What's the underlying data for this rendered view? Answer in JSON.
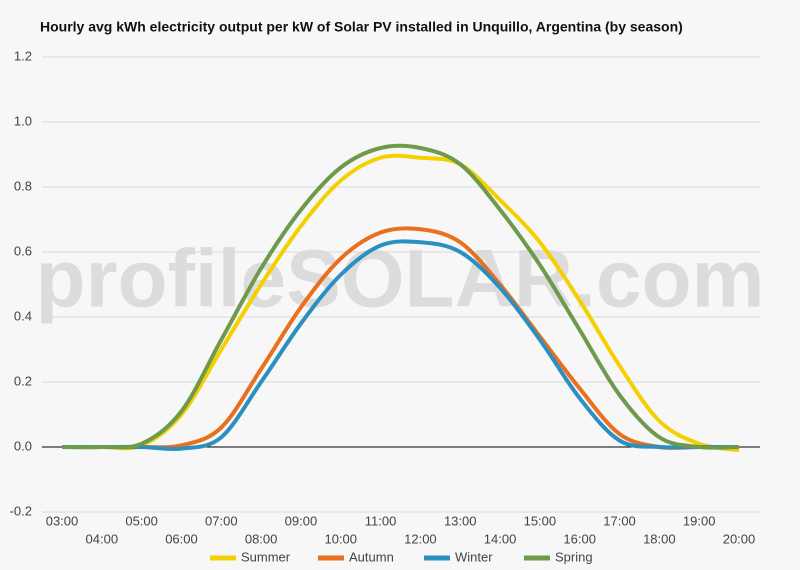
{
  "chart_data": {
    "type": "line",
    "title": "Hourly avg kWh electricity output per kW of Solar PV installed in Unquillo, Argentina (by season)",
    "watermark": "profileSOLAR.com",
    "categories": [
      "03:00",
      "04:00",
      "05:00",
      "06:00",
      "07:00",
      "08:00",
      "09:00",
      "10:00",
      "11:00",
      "12:00",
      "13:00",
      "14:00",
      "15:00",
      "16:00",
      "17:00",
      "18:00",
      "19:00",
      "20:00"
    ],
    "series": [
      {
        "name": "Summer",
        "color": "#f5d000",
        "values": [
          0,
          0,
          0.005,
          0.1,
          0.3,
          0.5,
          0.68,
          0.82,
          0.89,
          0.89,
          0.87,
          0.76,
          0.63,
          0.45,
          0.25,
          0.08,
          0.01,
          -0.01
        ]
      },
      {
        "name": "Autumn",
        "color": "#e8701f",
        "values": [
          0,
          0,
          0,
          0.005,
          0.06,
          0.24,
          0.43,
          0.58,
          0.66,
          0.67,
          0.63,
          0.5,
          0.34,
          0.18,
          0.04,
          0,
          0,
          0
        ]
      },
      {
        "name": "Winter",
        "color": "#2b8fbf",
        "values": [
          0,
          0,
          0,
          -0.005,
          0.03,
          0.2,
          0.38,
          0.53,
          0.62,
          0.63,
          0.6,
          0.49,
          0.33,
          0.15,
          0.02,
          0,
          0,
          0
        ]
      },
      {
        "name": "Spring",
        "color": "#6d9a4c",
        "values": [
          0,
          0,
          0.01,
          0.11,
          0.33,
          0.55,
          0.73,
          0.86,
          0.92,
          0.92,
          0.87,
          0.73,
          0.56,
          0.36,
          0.16,
          0.03,
          0,
          0
        ]
      }
    ],
    "ylim": [
      -0.2,
      1.2
    ],
    "yticks": [
      -0.2,
      {
        "value": 0,
        "label": "0.0"
      },
      0.2,
      0.4,
      0.6,
      0.8,
      {
        "value": 1,
        "label": "1.0"
      },
      1.2
    ],
    "grid": true,
    "legend": "bottom"
  }
}
